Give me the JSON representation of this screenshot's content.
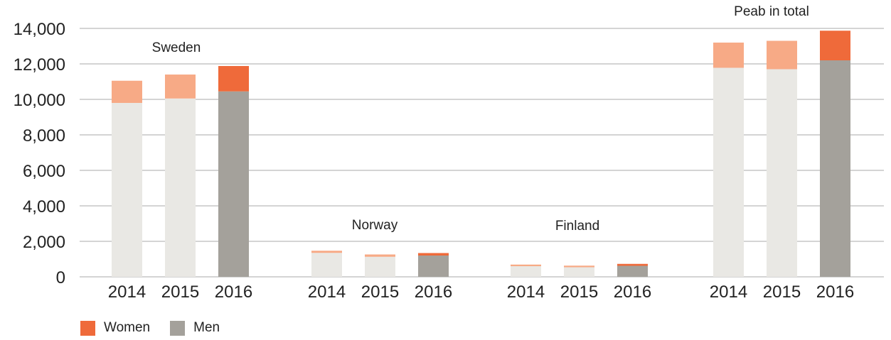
{
  "chart_data": {
    "type": "bar",
    "stacked": true,
    "ylim": [
      0,
      14000
    ],
    "y_ticks": [
      "0",
      "2,000",
      "4,000",
      "6,000",
      "8,000",
      "10,000",
      "12,000",
      "14,000"
    ],
    "y_tick_values": [
      0,
      2000,
      4000,
      6000,
      8000,
      10000,
      12000,
      14000
    ],
    "grid": true,
    "groups": [
      {
        "name": "Sweden",
        "years": [
          "2014",
          "2015",
          "2016"
        ],
        "men": [
          9800,
          10050,
          10450
        ],
        "women": [
          1250,
          1350,
          1430
        ]
      },
      {
        "name": "Norway",
        "years": [
          "2014",
          "2015",
          "2016"
        ],
        "men": [
          1350,
          1130,
          1200
        ],
        "women": [
          120,
          130,
          140
        ]
      },
      {
        "name": "Finland",
        "years": [
          "2014",
          "2015",
          "2016"
        ],
        "men": [
          600,
          540,
          620
        ],
        "women": [
          90,
          90,
          110
        ]
      },
      {
        "name": "Peab in total",
        "years": [
          "2014",
          "2015",
          "2016"
        ],
        "men": [
          11780,
          11700,
          12200
        ],
        "women": [
          1420,
          1600,
          1670
        ]
      }
    ],
    "legend": [
      {
        "name": "Women",
        "color": "#ef6a3a"
      },
      {
        "name": "Men",
        "color": "#a4a19b"
      }
    ],
    "legend_position": "bottom-left",
    "colors": {
      "men_past": "#e9e8e4",
      "women_past": "#f7aa86",
      "men_current": "#a4a19b",
      "women_current": "#ef6a3a",
      "grid": "#bbbbbb"
    }
  }
}
